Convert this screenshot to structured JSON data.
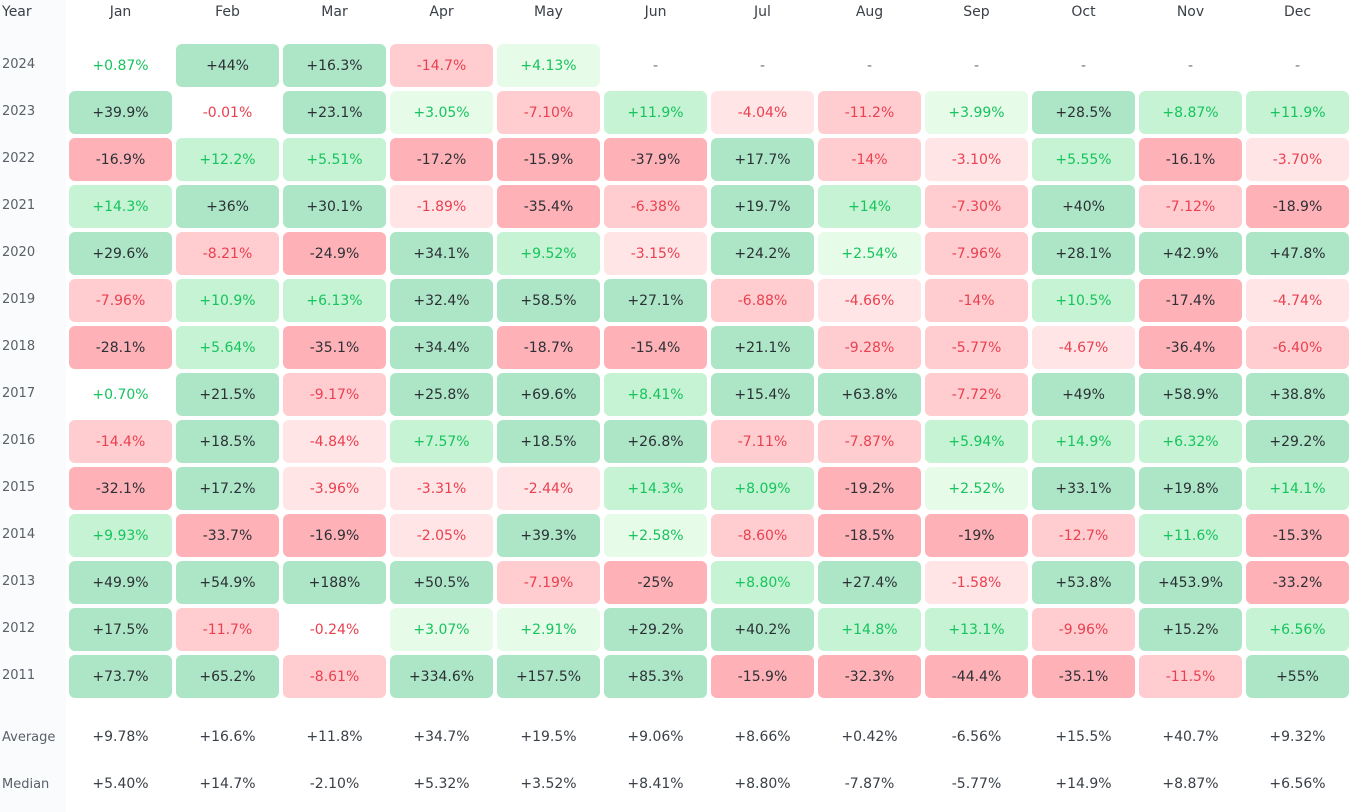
{
  "colors": {
    "pos_text": "#17c45e",
    "neg_text": "#ea4050",
    "strong_text": "#2b3036",
    "pos_light": "#e7fbe9",
    "pos_mid": "#c5f3d3",
    "pos_strong": "#ade6c6",
    "neg_light": "#ffe5e6",
    "neg_mid": "#ffcdd0",
    "neg_strong": "#feb1b6"
  },
  "chart_data": {
    "type": "heatmap",
    "year_header": "Year",
    "columns": [
      "Jan",
      "Feb",
      "Mar",
      "Apr",
      "May",
      "Jun",
      "Jul",
      "Aug",
      "Sep",
      "Oct",
      "Nov",
      "Dec"
    ],
    "rows": [
      {
        "year": "2024",
        "values": [
          0.87,
          44,
          16.3,
          -14.7,
          4.13,
          null,
          null,
          null,
          null,
          null,
          null,
          null
        ],
        "labels": [
          "+0.87%",
          "+44%",
          "+16.3%",
          "-14.7%",
          "+4.13%",
          "-",
          "-",
          "-",
          "-",
          "-",
          "-",
          "-"
        ]
      },
      {
        "year": "2023",
        "values": [
          39.9,
          -0.01,
          23.1,
          3.05,
          -7.1,
          11.9,
          -4.04,
          -11.2,
          3.99,
          28.5,
          8.87,
          11.9
        ],
        "labels": [
          "+39.9%",
          "-0.01%",
          "+23.1%",
          "+3.05%",
          "-7.10%",
          "+11.9%",
          "-4.04%",
          "-11.2%",
          "+3.99%",
          "+28.5%",
          "+8.87%",
          "+11.9%"
        ]
      },
      {
        "year": "2022",
        "values": [
          -16.9,
          12.2,
          5.51,
          -17.2,
          -15.9,
          -37.9,
          17.7,
          -14,
          -3.1,
          5.55,
          -16.1,
          -3.7
        ],
        "labels": [
          "-16.9%",
          "+12.2%",
          "+5.51%",
          "-17.2%",
          "-15.9%",
          "-37.9%",
          "+17.7%",
          "-14%",
          "-3.10%",
          "+5.55%",
          "-16.1%",
          "-3.70%"
        ]
      },
      {
        "year": "2021",
        "values": [
          14.3,
          36,
          30.1,
          -1.89,
          -35.4,
          -6.38,
          19.7,
          14,
          -7.3,
          40,
          -7.12,
          -18.9
        ],
        "labels": [
          "+14.3%",
          "+36%",
          "+30.1%",
          "-1.89%",
          "-35.4%",
          "-6.38%",
          "+19.7%",
          "+14%",
          "-7.30%",
          "+40%",
          "-7.12%",
          "-18.9%"
        ]
      },
      {
        "year": "2020",
        "values": [
          29.6,
          -8.21,
          -24.9,
          34.1,
          9.52,
          -3.15,
          24.2,
          2.54,
          -7.96,
          28.1,
          42.9,
          47.8
        ],
        "labels": [
          "+29.6%",
          "-8.21%",
          "-24.9%",
          "+34.1%",
          "+9.52%",
          "-3.15%",
          "+24.2%",
          "+2.54%",
          "-7.96%",
          "+28.1%",
          "+42.9%",
          "+47.8%"
        ]
      },
      {
        "year": "2019",
        "values": [
          -7.96,
          10.9,
          6.13,
          32.4,
          58.5,
          27.1,
          -6.88,
          -4.66,
          -14,
          10.5,
          -17.4,
          -4.74
        ],
        "labels": [
          "-7.96%",
          "+10.9%",
          "+6.13%",
          "+32.4%",
          "+58.5%",
          "+27.1%",
          "-6.88%",
          "-4.66%",
          "-14%",
          "+10.5%",
          "-17.4%",
          "-4.74%"
        ]
      },
      {
        "year": "2018",
        "values": [
          -28.1,
          5.64,
          -35.1,
          34.4,
          -18.7,
          -15.4,
          21.1,
          -9.28,
          -5.77,
          -4.67,
          -36.4,
          -6.4
        ],
        "labels": [
          "-28.1%",
          "+5.64%",
          "-35.1%",
          "+34.4%",
          "-18.7%",
          "-15.4%",
          "+21.1%",
          "-9.28%",
          "-5.77%",
          "-4.67%",
          "-36.4%",
          "-6.40%"
        ]
      },
      {
        "year": "2017",
        "values": [
          0.7,
          21.5,
          -9.17,
          25.8,
          69.6,
          8.41,
          15.4,
          63.8,
          -7.72,
          49,
          58.9,
          38.8
        ],
        "labels": [
          "+0.70%",
          "+21.5%",
          "-9.17%",
          "+25.8%",
          "+69.6%",
          "+8.41%",
          "+15.4%",
          "+63.8%",
          "-7.72%",
          "+49%",
          "+58.9%",
          "+38.8%"
        ]
      },
      {
        "year": "2016",
        "values": [
          -14.4,
          18.5,
          -4.84,
          7.57,
          18.5,
          26.8,
          -7.11,
          -7.87,
          5.94,
          14.9,
          6.32,
          29.2
        ],
        "labels": [
          "-14.4%",
          "+18.5%",
          "-4.84%",
          "+7.57%",
          "+18.5%",
          "+26.8%",
          "-7.11%",
          "-7.87%",
          "+5.94%",
          "+14.9%",
          "+6.32%",
          "+29.2%"
        ]
      },
      {
        "year": "2015",
        "values": [
          -32.1,
          17.2,
          -3.96,
          -3.31,
          -2.44,
          14.3,
          8.09,
          -19.2,
          2.52,
          33.1,
          19.8,
          14.1
        ],
        "labels": [
          "-32.1%",
          "+17.2%",
          "-3.96%",
          "-3.31%",
          "-2.44%",
          "+14.3%",
          "+8.09%",
          "-19.2%",
          "+2.52%",
          "+33.1%",
          "+19.8%",
          "+14.1%"
        ]
      },
      {
        "year": "2014",
        "values": [
          9.93,
          -33.7,
          -16.9,
          -2.05,
          39.3,
          2.58,
          -8.6,
          -18.5,
          -19,
          -12.7,
          11.6,
          -15.3
        ],
        "labels": [
          "+9.93%",
          "-33.7%",
          "-16.9%",
          "-2.05%",
          "+39.3%",
          "+2.58%",
          "-8.60%",
          "-18.5%",
          "-19%",
          "-12.7%",
          "+11.6%",
          "-15.3%"
        ]
      },
      {
        "year": "2013",
        "values": [
          49.9,
          54.9,
          188,
          50.5,
          -7.19,
          -25,
          8.8,
          27.4,
          -1.58,
          53.8,
          453.9,
          -33.2
        ],
        "labels": [
          "+49.9%",
          "+54.9%",
          "+188%",
          "+50.5%",
          "-7.19%",
          "-25%",
          "+8.80%",
          "+27.4%",
          "-1.58%",
          "+53.8%",
          "+453.9%",
          "-33.2%"
        ]
      },
      {
        "year": "2012",
        "values": [
          17.5,
          -11.7,
          -0.24,
          3.07,
          2.91,
          29.2,
          40.2,
          14.8,
          13.1,
          -9.96,
          15.2,
          6.56
        ],
        "labels": [
          "+17.5%",
          "-11.7%",
          "-0.24%",
          "+3.07%",
          "+2.91%",
          "+29.2%",
          "+40.2%",
          "+14.8%",
          "+13.1%",
          "-9.96%",
          "+15.2%",
          "+6.56%"
        ]
      },
      {
        "year": "2011",
        "values": [
          73.7,
          65.2,
          -8.61,
          334.6,
          157.5,
          85.3,
          -15.9,
          -32.3,
          -44.4,
          -35.1,
          -11.5,
          55
        ],
        "labels": [
          "+73.7%",
          "+65.2%",
          "-8.61%",
          "+334.6%",
          "+157.5%",
          "+85.3%",
          "-15.9%",
          "-32.3%",
          "-44.4%",
          "-35.1%",
          "-11.5%",
          "+55%"
        ]
      }
    ],
    "summary": [
      {
        "label": "Average",
        "labels": [
          "+9.78%",
          "+16.6%",
          "+11.8%",
          "+34.7%",
          "+19.5%",
          "+9.06%",
          "+8.66%",
          "+0.42%",
          "-6.56%",
          "+15.5%",
          "+40.7%",
          "+9.32%"
        ]
      },
      {
        "label": "Median",
        "labels": [
          "+5.40%",
          "+14.7%",
          "-2.10%",
          "+5.32%",
          "+3.52%",
          "+8.41%",
          "+8.80%",
          "-7.87%",
          "-5.77%",
          "+14.9%",
          "+8.87%",
          "+6.56%"
        ]
      }
    ]
  }
}
